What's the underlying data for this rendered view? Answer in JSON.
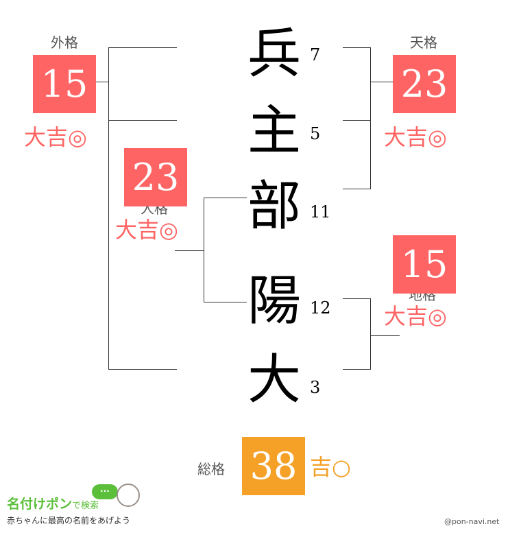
{
  "name_chars": [
    {
      "char": "兵",
      "strokes": "7"
    },
    {
      "char": "主",
      "strokes": "5"
    },
    {
      "char": "部",
      "strokes": "11"
    },
    {
      "char": "陽",
      "strokes": "12"
    },
    {
      "char": "大",
      "strokes": "3"
    }
  ],
  "gaikaku": {
    "label": "外格",
    "value": "15",
    "fortune": "大吉◎"
  },
  "tenkaku": {
    "label": "天格",
    "value": "23",
    "fortune": "大吉◎"
  },
  "jinkaku": {
    "label": "人格",
    "value": "23",
    "fortune": "大吉◎"
  },
  "chikaku": {
    "label": "地格",
    "value": "15",
    "fortune": "大吉◎"
  },
  "soukaku": {
    "label": "総格",
    "value": "38",
    "fortune": "吉○"
  },
  "colors": {
    "daikichi": "#ff6464",
    "kichi": "#f5a027",
    "line": "#333333"
  },
  "footer": {
    "logo_main": "名付けポン",
    "logo_sub": "で検索",
    "tagline": "赤ちゃんに最高の名前をあげよう",
    "credit": "@pon-navi.net",
    "bubble": "..."
  }
}
